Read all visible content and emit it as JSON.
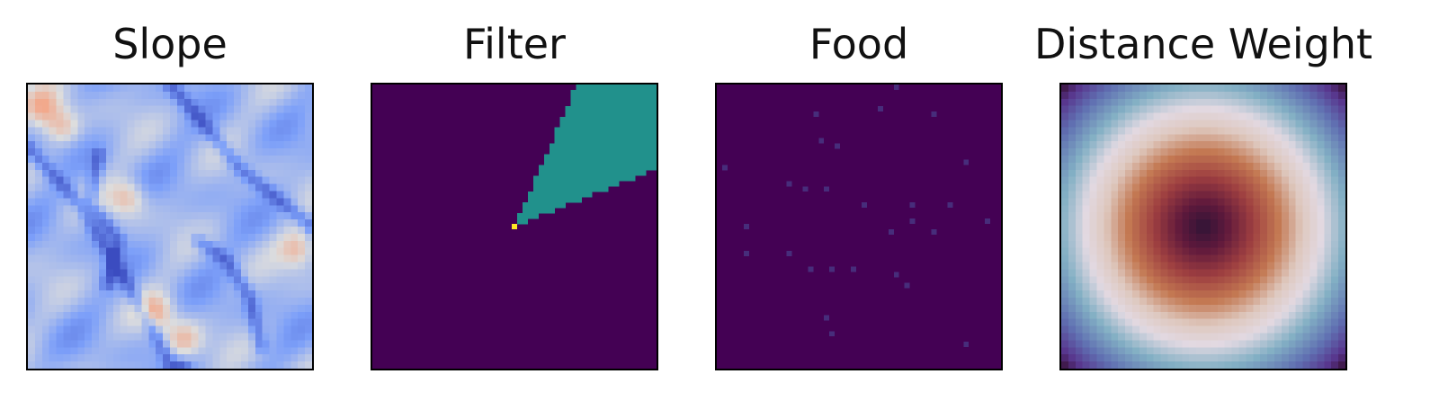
{
  "chart_data": [
    {
      "type": "heatmap",
      "title": "Slope",
      "colormap": "coolwarm",
      "grid": false,
      "ticks": false,
      "resolution": [
        40,
        40
      ],
      "ridges": [
        [
          [
            0.0,
            0.22
          ],
          [
            0.18,
            0.42
          ],
          [
            0.35,
            0.7
          ],
          [
            0.5,
            0.98
          ],
          [
            0.55,
            1.0
          ]
        ],
        [
          [
            0.5,
            0.0
          ],
          [
            0.62,
            0.14
          ],
          [
            0.75,
            0.3
          ],
          [
            0.9,
            0.42
          ],
          [
            1.0,
            0.5
          ]
        ],
        [
          [
            0.25,
            0.25
          ],
          [
            0.22,
            0.42
          ],
          [
            0.32,
            0.55
          ],
          [
            0.28,
            0.7
          ]
        ],
        [
          [
            0.6,
            0.55
          ],
          [
            0.7,
            0.62
          ],
          [
            0.78,
            0.75
          ],
          [
            0.82,
            0.92
          ]
        ]
      ],
      "hot_spots": [
        [
          0.05,
          0.08
        ],
        [
          0.12,
          0.15
        ],
        [
          0.45,
          0.8
        ],
        [
          0.55,
          0.9
        ],
        [
          0.95,
          0.58
        ],
        [
          0.35,
          0.4
        ]
      ]
    },
    {
      "type": "heatmap",
      "title": "Filter",
      "colormap": "viridis",
      "grid": false,
      "ticks": false,
      "resolution": [
        53,
        53
      ],
      "background_value": 0.0,
      "wedge_value": 0.5,
      "origin_value": 1.0,
      "wedge_origin": [
        0.5,
        0.5
      ],
      "wedge_polygon": [
        [
          0.5,
          0.5
        ],
        [
          0.72,
          0.0
        ],
        [
          1.0,
          0.0
        ],
        [
          1.0,
          0.3
        ]
      ],
      "colors": {
        "background": "#440154",
        "wedge": "#21918c",
        "origin": "#fde725"
      }
    },
    {
      "type": "heatmap",
      "title": "Food",
      "colormap": "viridis",
      "grid": false,
      "ticks": false,
      "resolution": [
        53,
        53
      ],
      "background_value": 0.0,
      "food_cells": [
        [
          0.63,
          0.01
        ],
        [
          0.58,
          0.09
        ],
        [
          0.35,
          0.11
        ],
        [
          0.76,
          0.11
        ],
        [
          0.37,
          0.19
        ],
        [
          0.42,
          0.21
        ],
        [
          0.88,
          0.28
        ],
        [
          0.03,
          0.3
        ],
        [
          0.25,
          0.34
        ],
        [
          0.31,
          0.37
        ],
        [
          0.39,
          0.37
        ],
        [
          0.51,
          0.43
        ],
        [
          0.68,
          0.43
        ],
        [
          0.82,
          0.43
        ],
        [
          0.11,
          0.5
        ],
        [
          0.68,
          0.49
        ],
        [
          0.95,
          0.49
        ],
        [
          0.62,
          0.52
        ],
        [
          0.77,
          0.52
        ],
        [
          0.11,
          0.6
        ],
        [
          0.25,
          0.6
        ],
        [
          0.33,
          0.65
        ],
        [
          0.41,
          0.65
        ],
        [
          0.48,
          0.65
        ],
        [
          0.63,
          0.67
        ],
        [
          0.67,
          0.71
        ],
        [
          0.39,
          0.82
        ],
        [
          0.41,
          0.88
        ],
        [
          0.87,
          0.92
        ]
      ],
      "colors": {
        "background": "#440154",
        "food": "#472d7b"
      }
    },
    {
      "type": "heatmap",
      "title": "Distance Weight",
      "colormap": "twilight",
      "grid": false,
      "ticks": false,
      "resolution": [
        40,
        40
      ],
      "center": [
        0.5,
        0.5
      ],
      "profile": "twilight of radial distance: dark center, orange/red ring, white ring, teal/blue, purple corners"
    }
  ]
}
